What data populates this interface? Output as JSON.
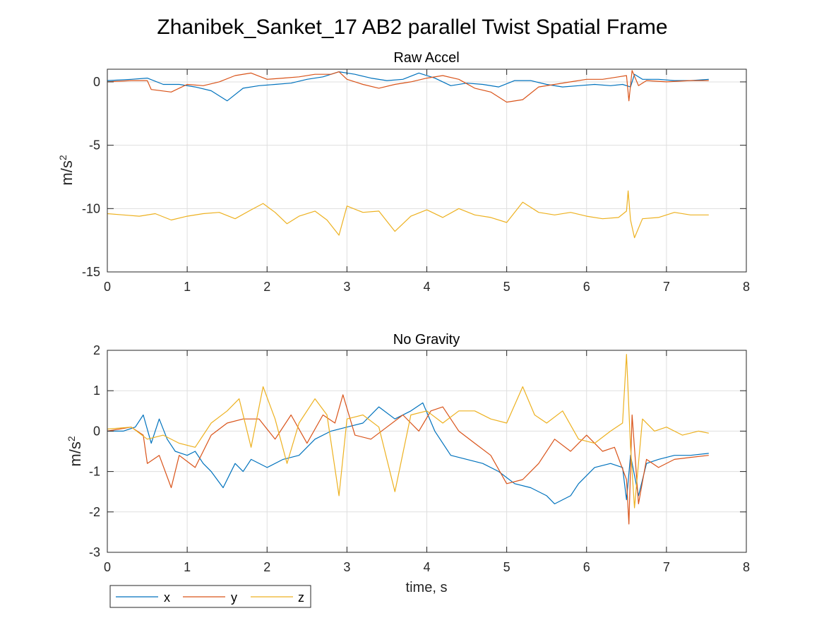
{
  "figure_title": "Zhanibek_Sanket_17 AB2 parallel Twist Spatial Frame",
  "colors": {
    "x": "#0072BD",
    "y": "#D95319",
    "z": "#EDB120"
  },
  "legend": {
    "placement": "bottom-left",
    "entries": [
      "x",
      "y",
      "z"
    ]
  },
  "chart_data": [
    {
      "type": "line",
      "title": "Raw Accel",
      "xlabel": "",
      "ylabel": "m/s",
      "ylabel_superscript": "2",
      "xlim": [
        0,
        8
      ],
      "ylim": [
        -15,
        1
      ],
      "x_ticks": [
        0,
        1,
        2,
        3,
        4,
        5,
        6,
        7,
        8
      ],
      "y_ticks": [
        -15,
        -10,
        -5,
        0
      ],
      "grid": true,
      "series": [
        {
          "name": "x",
          "color": "#0072BD",
          "points": [
            [
              0,
              0.1
            ],
            [
              0.3,
              0.2
            ],
            [
              0.5,
              0.3
            ],
            [
              0.7,
              -0.2
            ],
            [
              0.9,
              -0.2
            ],
            [
              1.1,
              -0.4
            ],
            [
              1.3,
              -0.7
            ],
            [
              1.5,
              -1.5
            ],
            [
              1.7,
              -0.5
            ],
            [
              1.9,
              -0.3
            ],
            [
              2.1,
              -0.2
            ],
            [
              2.3,
              -0.1
            ],
            [
              2.5,
              0.2
            ],
            [
              2.7,
              0.4
            ],
            [
              2.9,
              0.8
            ],
            [
              3.1,
              0.6
            ],
            [
              3.3,
              0.3
            ],
            [
              3.5,
              0.1
            ],
            [
              3.7,
              0.2
            ],
            [
              3.9,
              0.7
            ],
            [
              4.1,
              0.3
            ],
            [
              4.3,
              -0.3
            ],
            [
              4.5,
              -0.1
            ],
            [
              4.7,
              -0.2
            ],
            [
              4.9,
              -0.4
            ],
            [
              5.1,
              0.1
            ],
            [
              5.3,
              0.1
            ],
            [
              5.5,
              -0.2
            ],
            [
              5.7,
              -0.4
            ],
            [
              5.9,
              -0.3
            ],
            [
              6.1,
              -0.2
            ],
            [
              6.3,
              -0.3
            ],
            [
              6.45,
              -0.2
            ],
            [
              6.55,
              -0.4
            ],
            [
              6.6,
              0.6
            ],
            [
              6.7,
              0.2
            ],
            [
              6.9,
              0.2
            ],
            [
              7.1,
              0.1
            ],
            [
              7.3,
              0.1
            ],
            [
              7.53,
              0.2
            ]
          ]
        },
        {
          "name": "y",
          "color": "#D95319",
          "points": [
            [
              0,
              0
            ],
            [
              0.3,
              0.1
            ],
            [
              0.5,
              0.1
            ],
            [
              0.55,
              -0.6
            ],
            [
              0.8,
              -0.8
            ],
            [
              1,
              -0.2
            ],
            [
              1.2,
              -0.3
            ],
            [
              1.4,
              0
            ],
            [
              1.6,
              0.5
            ],
            [
              1.8,
              0.7
            ],
            [
              2,
              0.2
            ],
            [
              2.2,
              0.3
            ],
            [
              2.4,
              0.4
            ],
            [
              2.6,
              0.6
            ],
            [
              2.8,
              0.6
            ],
            [
              2.9,
              0.8
            ],
            [
              3,
              0.2
            ],
            [
              3.2,
              -0.2
            ],
            [
              3.4,
              -0.5
            ],
            [
              3.6,
              -0.2
            ],
            [
              3.8,
              0
            ],
            [
              4,
              0.3
            ],
            [
              4.2,
              0.5
            ],
            [
              4.4,
              0.2
            ],
            [
              4.6,
              -0.5
            ],
            [
              4.8,
              -0.8
            ],
            [
              5,
              -1.6
            ],
            [
              5.2,
              -1.4
            ],
            [
              5.4,
              -0.4
            ],
            [
              5.6,
              -0.2
            ],
            [
              5.8,
              0
            ],
            [
              6,
              0.2
            ],
            [
              6.2,
              0.2
            ],
            [
              6.4,
              0.4
            ],
            [
              6.5,
              0.5
            ],
            [
              6.53,
              -1.5
            ],
            [
              6.57,
              0.9
            ],
            [
              6.65,
              -0.3
            ],
            [
              6.75,
              0.1
            ],
            [
              7,
              0
            ],
            [
              7.3,
              0.1
            ],
            [
              7.53,
              0.1
            ]
          ]
        },
        {
          "name": "z",
          "color": "#EDB120",
          "points": [
            [
              0,
              -10.4
            ],
            [
              0.2,
              -10.5
            ],
            [
              0.4,
              -10.6
            ],
            [
              0.6,
              -10.4
            ],
            [
              0.8,
              -10.9
            ],
            [
              1,
              -10.6
            ],
            [
              1.2,
              -10.4
            ],
            [
              1.4,
              -10.3
            ],
            [
              1.6,
              -10.8
            ],
            [
              1.8,
              -10.1
            ],
            [
              1.95,
              -9.6
            ],
            [
              2.1,
              -10.3
            ],
            [
              2.25,
              -11.2
            ],
            [
              2.4,
              -10.6
            ],
            [
              2.6,
              -10.2
            ],
            [
              2.75,
              -10.9
            ],
            [
              2.9,
              -12.1
            ],
            [
              3,
              -9.8
            ],
            [
              3.2,
              -10.3
            ],
            [
              3.4,
              -10.2
            ],
            [
              3.6,
              -11.8
            ],
            [
              3.8,
              -10.6
            ],
            [
              4,
              -10.1
            ],
            [
              4.2,
              -10.7
            ],
            [
              4.4,
              -10.0
            ],
            [
              4.6,
              -10.5
            ],
            [
              4.8,
              -10.7
            ],
            [
              5,
              -11.1
            ],
            [
              5.2,
              -9.5
            ],
            [
              5.4,
              -10.3
            ],
            [
              5.6,
              -10.5
            ],
            [
              5.8,
              -10.3
            ],
            [
              6,
              -10.6
            ],
            [
              6.2,
              -10.8
            ],
            [
              6.4,
              -10.7
            ],
            [
              6.5,
              -10.2
            ],
            [
              6.52,
              -8.6
            ],
            [
              6.55,
              -10.9
            ],
            [
              6.6,
              -12.3
            ],
            [
              6.7,
              -10.8
            ],
            [
              6.9,
              -10.7
            ],
            [
              7.1,
              -10.3
            ],
            [
              7.3,
              -10.5
            ],
            [
              7.53,
              -10.5
            ]
          ]
        }
      ]
    },
    {
      "type": "line",
      "title": "No Gravity",
      "xlabel": "time, s",
      "ylabel": "m/s",
      "ylabel_superscript": "2",
      "xlim": [
        0,
        8
      ],
      "ylim": [
        -3,
        2
      ],
      "x_ticks": [
        0,
        1,
        2,
        3,
        4,
        5,
        6,
        7,
        8
      ],
      "y_ticks": [
        -3,
        -2,
        -1,
        0,
        1,
        2
      ],
      "grid": true,
      "series": [
        {
          "name": "x",
          "color": "#0072BD",
          "points": [
            [
              0,
              0
            ],
            [
              0.2,
              0
            ],
            [
              0.35,
              0.1
            ],
            [
              0.45,
              0.4
            ],
            [
              0.55,
              -0.3
            ],
            [
              0.65,
              0.3
            ],
            [
              0.75,
              -0.2
            ],
            [
              0.85,
              -0.5
            ],
            [
              1,
              -0.6
            ],
            [
              1.1,
              -0.5
            ],
            [
              1.2,
              -0.8
            ],
            [
              1.3,
              -1.0
            ],
            [
              1.45,
              -1.4
            ],
            [
              1.6,
              -0.8
            ],
            [
              1.7,
              -1.0
            ],
            [
              1.8,
              -0.7
            ],
            [
              2,
              -0.9
            ],
            [
              2.2,
              -0.7
            ],
            [
              2.4,
              -0.6
            ],
            [
              2.6,
              -0.2
            ],
            [
              2.8,
              0
            ],
            [
              3,
              0.1
            ],
            [
              3.2,
              0.2
            ],
            [
              3.4,
              0.6
            ],
            [
              3.6,
              0.3
            ],
            [
              3.8,
              0.5
            ],
            [
              3.95,
              0.7
            ],
            [
              4.1,
              0
            ],
            [
              4.3,
              -0.6
            ],
            [
              4.5,
              -0.7
            ],
            [
              4.7,
              -0.8
            ],
            [
              4.9,
              -1.0
            ],
            [
              5.1,
              -1.3
            ],
            [
              5.3,
              -1.4
            ],
            [
              5.5,
              -1.6
            ],
            [
              5.6,
              -1.8
            ],
            [
              5.7,
              -1.7
            ],
            [
              5.8,
              -1.6
            ],
            [
              5.9,
              -1.3
            ],
            [
              6.1,
              -0.9
            ],
            [
              6.3,
              -0.8
            ],
            [
              6.45,
              -0.9
            ],
            [
              6.5,
              -1.7
            ],
            [
              6.55,
              -0.6
            ],
            [
              6.65,
              -1.6
            ],
            [
              6.75,
              -0.8
            ],
            [
              6.9,
              -0.7
            ],
            [
              7.1,
              -0.6
            ],
            [
              7.3,
              -0.6
            ],
            [
              7.53,
              -0.55
            ]
          ]
        },
        {
          "name": "y",
          "color": "#D95319",
          "points": [
            [
              0,
              0
            ],
            [
              0.3,
              0.1
            ],
            [
              0.45,
              -0.1
            ],
            [
              0.5,
              -0.8
            ],
            [
              0.65,
              -0.6
            ],
            [
              0.8,
              -1.4
            ],
            [
              0.9,
              -0.6
            ],
            [
              1.1,
              -0.9
            ],
            [
              1.3,
              -0.1
            ],
            [
              1.5,
              0.2
            ],
            [
              1.7,
              0.3
            ],
            [
              1.9,
              0.3
            ],
            [
              2.1,
              -0.2
            ],
            [
              2.3,
              0.4
            ],
            [
              2.5,
              -0.3
            ],
            [
              2.7,
              0.4
            ],
            [
              2.85,
              0.2
            ],
            [
              2.95,
              0.9
            ],
            [
              3.1,
              -0.1
            ],
            [
              3.3,
              -0.2
            ],
            [
              3.5,
              0.1
            ],
            [
              3.7,
              0.4
            ],
            [
              3.9,
              0
            ],
            [
              4.05,
              0.5
            ],
            [
              4.2,
              0.6
            ],
            [
              4.4,
              0
            ],
            [
              4.6,
              -0.3
            ],
            [
              4.8,
              -0.6
            ],
            [
              5,
              -1.3
            ],
            [
              5.2,
              -1.2
            ],
            [
              5.4,
              -0.8
            ],
            [
              5.6,
              -0.2
            ],
            [
              5.8,
              -0.5
            ],
            [
              6,
              -0.1
            ],
            [
              6.2,
              -0.5
            ],
            [
              6.35,
              -0.4
            ],
            [
              6.5,
              -1.2
            ],
            [
              6.53,
              -2.3
            ],
            [
              6.57,
              0.4
            ],
            [
              6.65,
              -1.8
            ],
            [
              6.75,
              -0.7
            ],
            [
              6.9,
              -0.9
            ],
            [
              7.1,
              -0.7
            ],
            [
              7.3,
              -0.65
            ],
            [
              7.53,
              -0.6
            ]
          ]
        },
        {
          "name": "z",
          "color": "#EDB120",
          "points": [
            [
              0,
              0.05
            ],
            [
              0.3,
              0.1
            ],
            [
              0.5,
              -0.2
            ],
            [
              0.7,
              -0.1
            ],
            [
              0.9,
              -0.3
            ],
            [
              1.1,
              -0.4
            ],
            [
              1.3,
              0.2
            ],
            [
              1.5,
              0.5
            ],
            [
              1.65,
              0.8
            ],
            [
              1.8,
              -0.4
            ],
            [
              1.95,
              1.1
            ],
            [
              2.1,
              0.3
            ],
            [
              2.25,
              -0.8
            ],
            [
              2.4,
              0.2
            ],
            [
              2.6,
              0.8
            ],
            [
              2.75,
              0.4
            ],
            [
              2.9,
              -1.6
            ],
            [
              3.0,
              0.3
            ],
            [
              3.2,
              0.4
            ],
            [
              3.4,
              0.1
            ],
            [
              3.6,
              -1.5
            ],
            [
              3.8,
              0.4
            ],
            [
              4,
              0.5
            ],
            [
              4.2,
              0.2
            ],
            [
              4.4,
              0.5
            ],
            [
              4.6,
              0.5
            ],
            [
              4.8,
              0.3
            ],
            [
              5,
              0.2
            ],
            [
              5.2,
              1.1
            ],
            [
              5.35,
              0.4
            ],
            [
              5.5,
              0.2
            ],
            [
              5.7,
              0.5
            ],
            [
              5.9,
              -0.2
            ],
            [
              6.1,
              -0.3
            ],
            [
              6.3,
              0
            ],
            [
              6.45,
              0.2
            ],
            [
              6.5,
              1.9
            ],
            [
              6.55,
              -0.4
            ],
            [
              6.6,
              -1.9
            ],
            [
              6.7,
              0.3
            ],
            [
              6.85,
              0
            ],
            [
              7,
              0.1
            ],
            [
              7.2,
              -0.1
            ],
            [
              7.4,
              0
            ],
            [
              7.53,
              -0.05
            ]
          ]
        }
      ]
    }
  ]
}
